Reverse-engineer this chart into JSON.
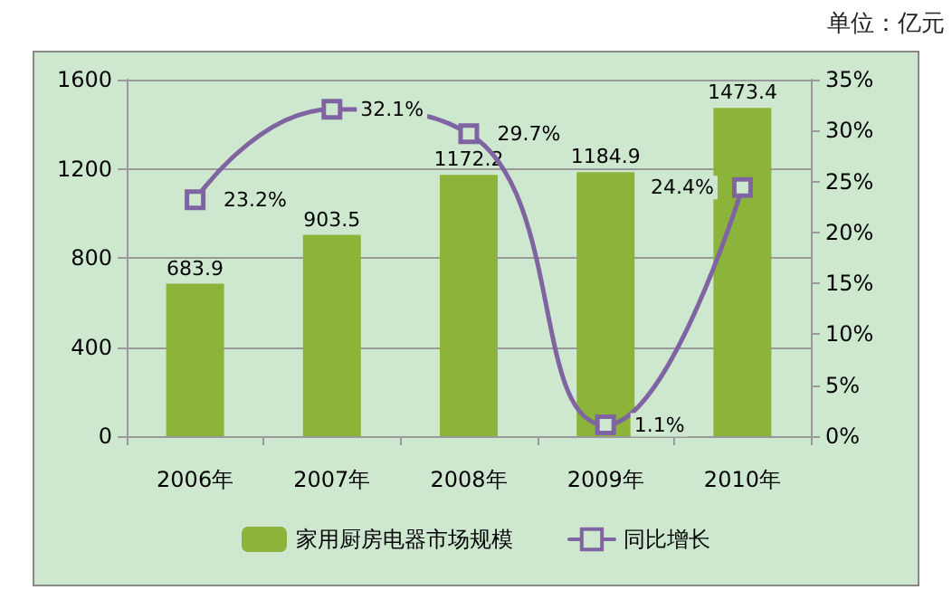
{
  "chart_data": {
    "type": "bar",
    "annotations": [
      "单位：亿元"
    ],
    "categories": [
      "2006年",
      "2007年",
      "2008年",
      "2009年",
      "2010年"
    ],
    "series": [
      {
        "name": "家用厨房电器市场规模",
        "color": "#8cb43a",
        "values": [
          683.9,
          903.5,
          1172.2,
          1184.9,
          1473.4
        ],
        "value_labels": [
          "683.9",
          "903.5",
          "1172.2",
          "1184.9",
          "1473.4"
        ]
      },
      {
        "name": "同比增长",
        "type": "line",
        "axis": "y2",
        "color": "#8064a2",
        "values": [
          23.2,
          32.1,
          29.7,
          1.1,
          24.4
        ],
        "value_labels": [
          "23.2%",
          "32.1%",
          "29.7%",
          "1.1%",
          "24.4%"
        ]
      }
    ],
    "ylim": [
      0,
      1600
    ],
    "yticks": [
      0,
      400,
      800,
      1200,
      1600
    ],
    "y2lim": [
      0,
      35
    ],
    "y2ticks": [
      {
        "value": 0,
        "label": "0%"
      },
      {
        "value": 5,
        "label": "5%"
      },
      {
        "value": 10,
        "label": "10%"
      },
      {
        "value": 15,
        "label": "15%"
      },
      {
        "value": 20,
        "label": "20%"
      },
      {
        "value": 25,
        "label": "25%"
      },
      {
        "value": 30,
        "label": "30%"
      },
      {
        "value": 35,
        "label": "35%"
      }
    ],
    "grid": "y",
    "legend": "bottom",
    "marker": "square"
  }
}
